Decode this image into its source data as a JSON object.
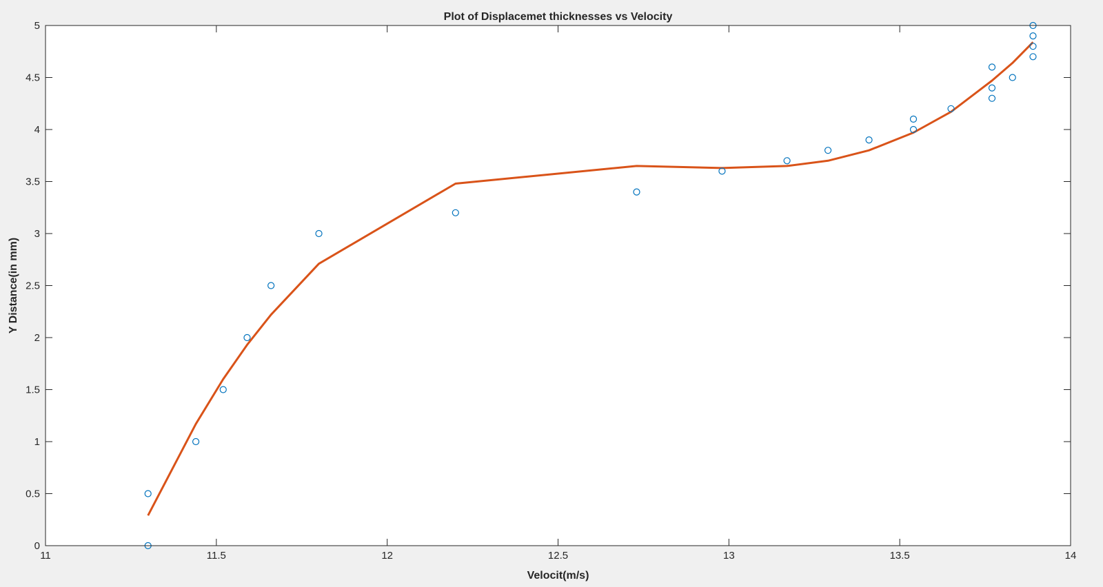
{
  "chart_data": {
    "type": "scatter",
    "title": "Plot of Displacemet thicknesses vs Velocity",
    "xlabel": "Velocit(m/s)",
    "ylabel": "Y Distance(in mm)",
    "xlim": [
      11,
      14
    ],
    "ylim": [
      0,
      5
    ],
    "x_ticks": [
      11,
      11.5,
      12,
      12.5,
      13,
      13.5,
      14
    ],
    "x_tick_labels": [
      "11",
      "11.5",
      "12",
      "12.5",
      "13",
      "13.5",
      "14"
    ],
    "y_ticks": [
      0,
      0.5,
      1,
      1.5,
      2,
      2.5,
      3,
      3.5,
      4,
      4.5,
      5
    ],
    "y_tick_labels": [
      "0",
      "0.5",
      "1",
      "1.5",
      "2",
      "2.5",
      "3",
      "3.5",
      "4",
      "4.5",
      "5"
    ],
    "grid": false,
    "colors": {
      "markers": "#0072BD",
      "fit_line": "#D95319",
      "axes_bg": "#ffffff",
      "figure_bg": "#f0f0f0"
    },
    "series": [
      {
        "type": "scatter",
        "marker": "circle-open",
        "x": [
          11.3,
          11.3,
          11.44,
          11.52,
          11.59,
          11.66,
          11.8,
          12.2,
          12.73,
          12.98,
          13.17,
          13.29,
          13.41,
          13.54,
          13.54,
          13.65,
          13.77,
          13.77,
          13.77,
          13.83,
          13.89,
          13.89,
          13.89,
          13.89
        ],
        "y": [
          0,
          0.5,
          1.0,
          1.5,
          2.0,
          2.5,
          3.0,
          3.2,
          3.4,
          3.6,
          3.7,
          3.8,
          3.9,
          4.0,
          4.1,
          4.2,
          4.3,
          4.4,
          4.6,
          4.5,
          4.7,
          4.8,
          4.9,
          5.0
        ]
      },
      {
        "type": "line",
        "x": [
          11.3,
          11.44,
          11.52,
          11.59,
          11.66,
          11.8,
          12.2,
          12.73,
          12.98,
          13.17,
          13.29,
          13.41,
          13.54,
          13.65,
          13.77,
          13.83,
          13.89
        ],
        "y": [
          0.29,
          1.17,
          1.6,
          1.93,
          2.22,
          2.71,
          3.48,
          3.65,
          3.63,
          3.65,
          3.7,
          3.8,
          3.97,
          4.17,
          4.47,
          4.64,
          4.84
        ]
      }
    ]
  }
}
